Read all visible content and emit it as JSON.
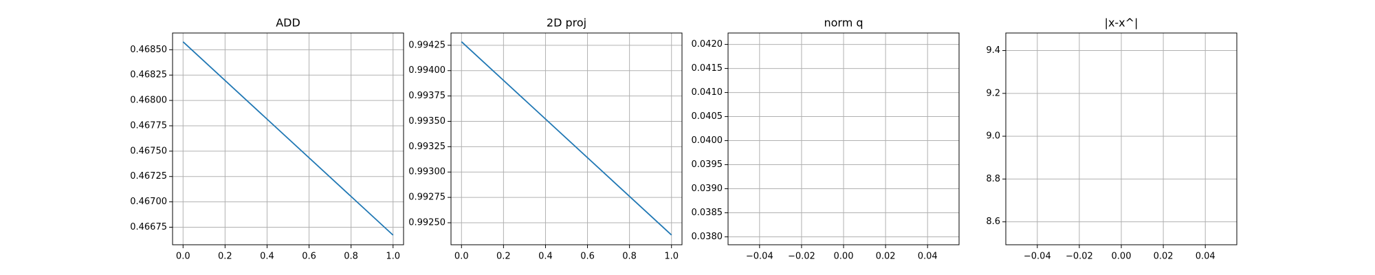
{
  "chart_data": [
    {
      "type": "line",
      "title": "ADD",
      "grid": true,
      "x": [
        0,
        1
      ],
      "series": [
        {
          "color": "#1f77b4",
          "values": [
            0.468578,
            0.466672
          ]
        }
      ],
      "xlim": [
        -0.05,
        1.05
      ],
      "xticks": [
        {
          "value": 0,
          "label": "0.0"
        },
        0.2,
        0.4,
        0.6,
        0.8,
        {
          "value": 1,
          "label": "1.0"
        }
      ],
      "ylim": [
        0.466577,
        0.468665
      ],
      "yticks": [
        {
          "value": 0.46675,
          "label": "0.46675"
        },
        {
          "value": 0.467,
          "label": "0.46700"
        },
        {
          "value": 0.46725,
          "label": "0.46725"
        },
        {
          "value": 0.4675,
          "label": "0.46750"
        },
        {
          "value": 0.46775,
          "label": "0.46775"
        },
        {
          "value": 0.468,
          "label": "0.46800"
        },
        {
          "value": 0.46825,
          "label": "0.46825"
        },
        {
          "value": 0.4685,
          "label": "0.46850"
        }
      ]
    },
    {
      "type": "line",
      "title": "2D proj",
      "grid": true,
      "x": [
        0,
        1
      ],
      "series": [
        {
          "color": "#1f77b4",
          "values": [
            0.994285,
            0.992379
          ]
        }
      ],
      "xlim": [
        -0.05,
        1.05
      ],
      "xticks": [
        {
          "value": 0,
          "label": "0.0"
        },
        0.2,
        0.4,
        0.6,
        0.8,
        {
          "value": 1,
          "label": "1.0"
        }
      ],
      "ylim": [
        0.992283,
        0.994371
      ],
      "yticks": [
        {
          "value": 0.9925,
          "label": "0.99250"
        },
        {
          "value": 0.99275,
          "label": "0.99275"
        },
        {
          "value": 0.993,
          "label": "0.99300"
        },
        {
          "value": 0.99325,
          "label": "0.99325"
        },
        {
          "value": 0.9935,
          "label": "0.99350"
        },
        {
          "value": 0.99375,
          "label": "0.99375"
        },
        {
          "value": 0.994,
          "label": "0.99400"
        },
        {
          "value": 0.99425,
          "label": "0.99425"
        }
      ]
    },
    {
      "type": "line",
      "title": "norm q",
      "grid": true,
      "x": [],
      "series": [],
      "xlim": [
        -0.055,
        0.055
      ],
      "xticks": [
        {
          "value": -0.04,
          "label": "−0.04"
        },
        {
          "value": -0.02,
          "label": "−0.02"
        },
        {
          "value": 0,
          "label": "0.00"
        },
        0.02,
        0.04
      ],
      "ylim": [
        0.037836,
        0.042237
      ],
      "yticks": [
        {
          "value": 0.038,
          "label": "0.0380"
        },
        0.0385,
        {
          "value": 0.039,
          "label": "0.0390"
        },
        0.0395,
        {
          "value": 0.04,
          "label": "0.0400"
        },
        0.0405,
        {
          "value": 0.041,
          "label": "0.0410"
        },
        0.0415,
        {
          "value": 0.042,
          "label": "0.0420"
        }
      ]
    },
    {
      "type": "line",
      "title": "|x-x^|",
      "grid": true,
      "x": [],
      "series": [],
      "xlim": [
        -0.055,
        0.055
      ],
      "xticks": [
        {
          "value": -0.04,
          "label": "−0.04"
        },
        {
          "value": -0.02,
          "label": "−0.02"
        },
        {
          "value": 0,
          "label": "0.00"
        },
        0.02,
        0.04
      ],
      "ylim": [
        8.493,
        9.482
      ],
      "yticks": [
        8.6,
        8.8,
        {
          "value": 9,
          "label": "9.0"
        },
        9.2,
        9.4
      ]
    }
  ]
}
